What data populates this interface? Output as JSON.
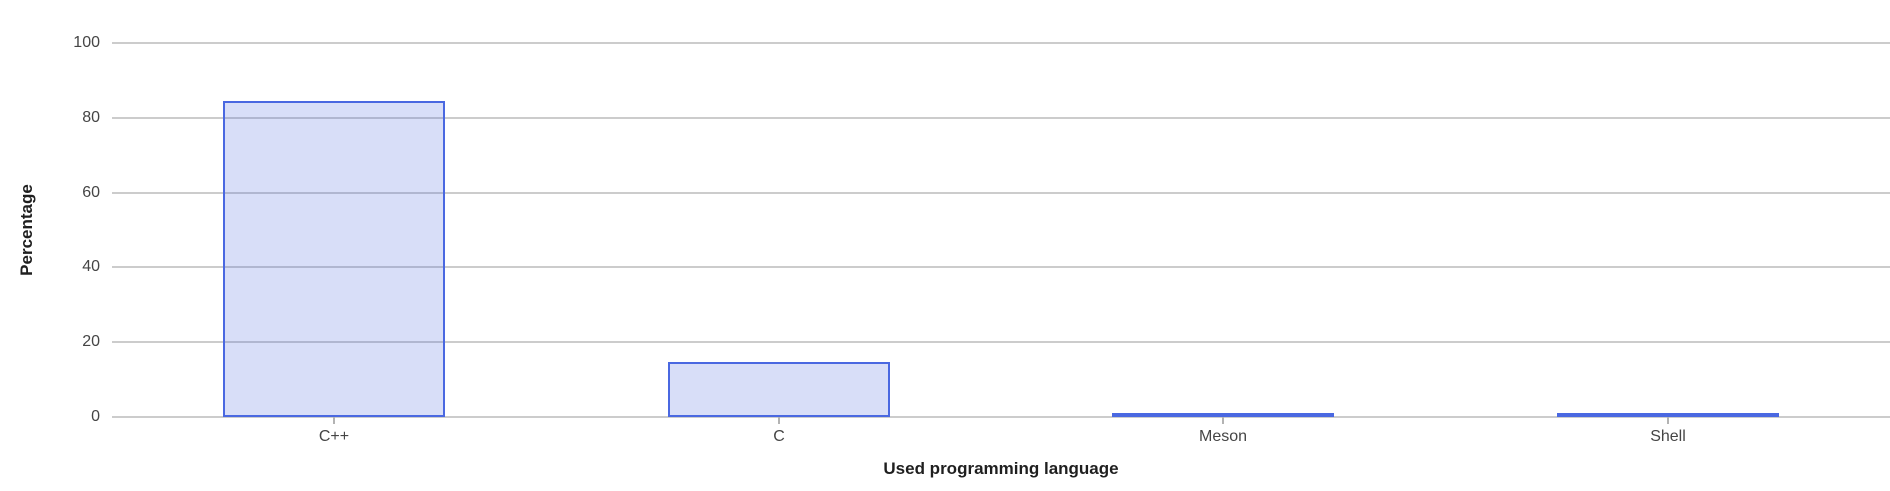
{
  "chart_data": {
    "type": "bar",
    "title": "",
    "xlabel": "Used programming language",
    "ylabel": "Percentage",
    "categories": [
      "C++",
      "C",
      "Meson",
      "Shell"
    ],
    "values": [
      84.5,
      14.8,
      0.6,
      0.5
    ],
    "ylim": [
      0,
      100
    ],
    "yticks": [
      0,
      20,
      40,
      60,
      80,
      100
    ],
    "grid": "horizontal",
    "legend": "none",
    "colors": {
      "bar_fill": "rgba(76, 104, 225, 0.22)",
      "bar_border": "#4a68e1",
      "gridline": "#cccccc",
      "axis_line": "#cccccc",
      "tick_mark": "#b3b3b3",
      "tick_label": "#454545",
      "axis_title": "#1f1f1f",
      "background": "#ffffff"
    }
  }
}
